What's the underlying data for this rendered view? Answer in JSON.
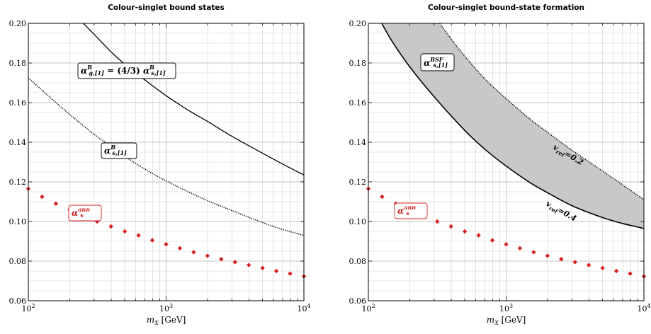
{
  "chart_data": [
    {
      "type": "line",
      "title": "Colour-singlet bound states",
      "xlabel": "m_X [GeV]",
      "xlabel_main": "m",
      "xlabel_sub": "X",
      "xlabel_unit": " [GeV]",
      "xscale": "log",
      "xlim": [
        100,
        10000
      ],
      "ylim": [
        0.06,
        0.2
      ],
      "xticks": [
        {
          "value": 100,
          "base": "10",
          "exp": "2"
        },
        {
          "value": 1000,
          "base": "10",
          "exp": "3"
        },
        {
          "value": 10000,
          "base": "10",
          "exp": "4"
        }
      ],
      "yticks": [
        "0.06",
        "0.08",
        "0.10",
        "0.12",
        "0.14",
        "0.16",
        "0.18",
        "0.20"
      ],
      "grid": true,
      "series": [
        {
          "style": "solid",
          "x": [
            250,
            300,
            400,
            500,
            700,
            1000,
            1500,
            2000,
            3000,
            5000,
            7000,
            10000
          ],
          "y": [
            0.2,
            0.1945,
            0.1855,
            0.1795,
            0.1715,
            0.1635,
            0.1555,
            0.1505,
            0.143,
            0.1345,
            0.129,
            0.1235
          ]
        },
        {
          "style": "dotted",
          "x": [
            100,
            150,
            200,
            300,
            500,
            700,
            1000,
            1500,
            2000,
            3000,
            5000,
            7000,
            10000
          ],
          "y": [
            0.1725,
            0.1615,
            0.154,
            0.144,
            0.133,
            0.1265,
            0.1205,
            0.1145,
            0.1105,
            0.1055,
            0.0995,
            0.096,
            0.093
          ]
        },
        {
          "style": "diamonds",
          "color": "#d62020",
          "x": [
            100,
            125.9,
            158.5,
            199.5,
            251.2,
            316.2,
            398.1,
            501.2,
            631.0,
            794.3,
            1000,
            1258.9,
            1584.9,
            1995.3,
            2511.9,
            3162.3,
            3981.1,
            5011.9,
            6309.6,
            7943.3,
            10000
          ],
          "y": [
            0.1165,
            0.1125,
            0.109,
            0.106,
            0.103,
            0.1,
            0.0975,
            0.095,
            0.093,
            0.0905,
            0.0885,
            0.0865,
            0.0845,
            0.0827,
            0.081,
            0.0795,
            0.078,
            0.0765,
            0.075,
            0.0737,
            0.0723
          ]
        }
      ],
      "labels": [
        {
          "id": "alpha-g-label",
          "main": "α",
          "sup": "B",
          "sub": "g,[1]",
          "rest": " = (4/3) ",
          "main2": "α",
          "sup2": "B",
          "sub2": "s,[1]"
        },
        {
          "id": "alpha-s-b-label",
          "main": "α",
          "sup": "B",
          "sub": "s,[1]"
        },
        {
          "id": "alpha-ann-label",
          "main": "α",
          "sup": "ann",
          "sub": "s",
          "color": "#d62020"
        }
      ]
    },
    {
      "type": "area",
      "title": "Colour-singlet bound-state formation",
      "xlabel": "m_X [GeV]",
      "xlabel_main": "m",
      "xlabel_sub": "X",
      "xlabel_unit": " [GeV]",
      "xscale": "log",
      "xlim": [
        100,
        10000
      ],
      "ylim": [
        0.06,
        0.2
      ],
      "xticks": [
        {
          "value": 100,
          "base": "10",
          "exp": "2"
        },
        {
          "value": 1000,
          "base": "10",
          "exp": "3"
        },
        {
          "value": 10000,
          "base": "10",
          "exp": "4"
        }
      ],
      "yticks": [
        "0.06",
        "0.08",
        "0.10",
        "0.12",
        "0.14",
        "0.16",
        "0.18",
        "0.20"
      ],
      "grid": true,
      "band_color": "#c8c8c8",
      "series": [
        {
          "name_prefix": "v",
          "name_sub": "rel",
          "name_value": "=0.4",
          "style": "solid",
          "x": [
            125,
            150,
            200,
            300,
            500,
            700,
            1000,
            1500,
            2000,
            3000,
            5000,
            7000,
            10000
          ],
          "y": [
            0.2,
            0.1905,
            0.178,
            0.163,
            0.146,
            0.1365,
            0.128,
            0.1195,
            0.1145,
            0.108,
            0.102,
            0.099,
            0.0965
          ]
        },
        {
          "name_prefix": "v",
          "name_sub": "rel",
          "name_value": "=0.2",
          "style": "dotted",
          "x": [
            330,
            400,
            500,
            700,
            1000,
            1500,
            2000,
            3000,
            5000,
            7000,
            10000
          ],
          "y": [
            0.2,
            0.192,
            0.1835,
            0.172,
            0.162,
            0.1515,
            0.145,
            0.136,
            0.1255,
            0.1185,
            0.111
          ]
        },
        {
          "style": "diamonds",
          "color": "#d62020",
          "x": [
            100,
            125.9,
            158.5,
            199.5,
            251.2,
            316.2,
            398.1,
            501.2,
            631.0,
            794.3,
            1000,
            1258.9,
            1584.9,
            1995.3,
            2511.9,
            3162.3,
            3981.1,
            5011.9,
            6309.6,
            7943.3,
            10000
          ],
          "y": [
            0.1165,
            0.1125,
            0.109,
            0.106,
            0.103,
            0.1,
            0.0975,
            0.095,
            0.093,
            0.0905,
            0.0885,
            0.0865,
            0.0845,
            0.0827,
            0.081,
            0.0795,
            0.078,
            0.0765,
            0.075,
            0.0737,
            0.0723
          ]
        }
      ],
      "labels": [
        {
          "id": "alpha-bsf-label",
          "main": "α",
          "sup": "BSF",
          "sub": "s,[1]"
        },
        {
          "id": "alpha-ann-label-right",
          "main": "α",
          "sup": "ann",
          "sub": "s",
          "color": "#d62020"
        }
      ]
    }
  ]
}
